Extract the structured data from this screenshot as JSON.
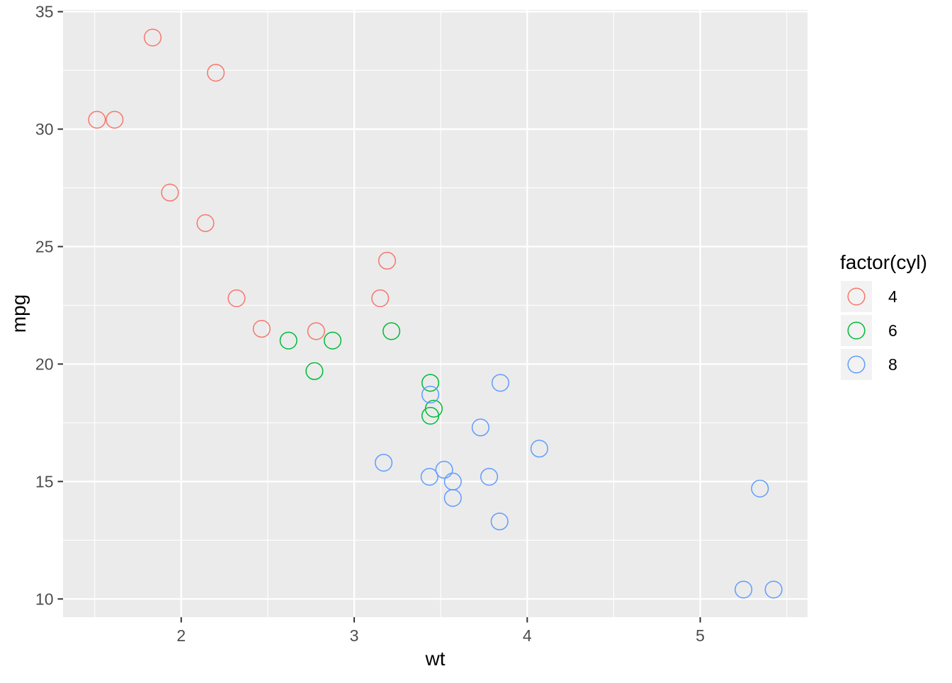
{
  "figure": {
    "xlabel": "wt",
    "ylabel": "mpg"
  },
  "chart_data": {
    "type": "scatter",
    "title": "",
    "xlabel": "wt",
    "ylabel": "mpg",
    "xlim": [
      1.317,
      5.62
    ],
    "ylim": [
      9.225,
      35.075
    ],
    "x_ticks": [
      2,
      3,
      4,
      5
    ],
    "y_ticks": [
      10,
      15,
      20,
      25,
      30,
      35
    ],
    "x_minor_ticks": [
      1.5,
      2.5,
      3.5,
      4.5,
      5.5
    ],
    "y_minor_ticks": [
      12.5,
      17.5,
      22.5,
      27.5,
      32.5
    ],
    "grid": true,
    "legend": {
      "title": "factor(cyl)",
      "position": "right",
      "entries": [
        "4",
        "6",
        "8"
      ]
    },
    "point_style": {
      "shape": "open-circle",
      "radius": 11.8,
      "stroke_width": 1.5
    },
    "colors": {
      "panel_bg": "#EBEBEB",
      "grid": "#FFFFFF",
      "tick_mark": "#333333",
      "tick_label": "#4D4D4D",
      "legend_key_bg": "#F2F2F2"
    },
    "series": [
      {
        "name": "4",
        "color": "#F8766D",
        "points": [
          [
            2.32,
            22.8
          ],
          [
            3.19,
            24.4
          ],
          [
            3.15,
            22.8
          ],
          [
            2.2,
            32.4
          ],
          [
            1.615,
            30.4
          ],
          [
            1.835,
            33.9
          ],
          [
            2.465,
            21.5
          ],
          [
            1.935,
            27.3
          ],
          [
            2.14,
            26.0
          ],
          [
            1.513,
            30.4
          ],
          [
            2.78,
            21.4
          ]
        ]
      },
      {
        "name": "6",
        "color": "#00BA38",
        "points": [
          [
            2.62,
            21.0
          ],
          [
            2.875,
            21.0
          ],
          [
            3.215,
            21.4
          ],
          [
            3.46,
            18.1
          ],
          [
            3.44,
            19.2
          ],
          [
            3.44,
            17.8
          ],
          [
            2.77,
            19.7
          ]
        ]
      },
      {
        "name": "8",
        "color": "#619CFF",
        "points": [
          [
            3.44,
            18.7
          ],
          [
            3.57,
            14.3
          ],
          [
            4.07,
            16.4
          ],
          [
            3.73,
            17.3
          ],
          [
            3.78,
            15.2
          ],
          [
            5.25,
            10.4
          ],
          [
            5.424,
            10.4
          ],
          [
            5.345,
            14.7
          ],
          [
            3.52,
            15.5
          ],
          [
            3.435,
            15.2
          ],
          [
            3.84,
            13.3
          ],
          [
            3.845,
            19.2
          ],
          [
            3.17,
            15.8
          ],
          [
            3.57,
            15.0
          ]
        ]
      }
    ]
  }
}
